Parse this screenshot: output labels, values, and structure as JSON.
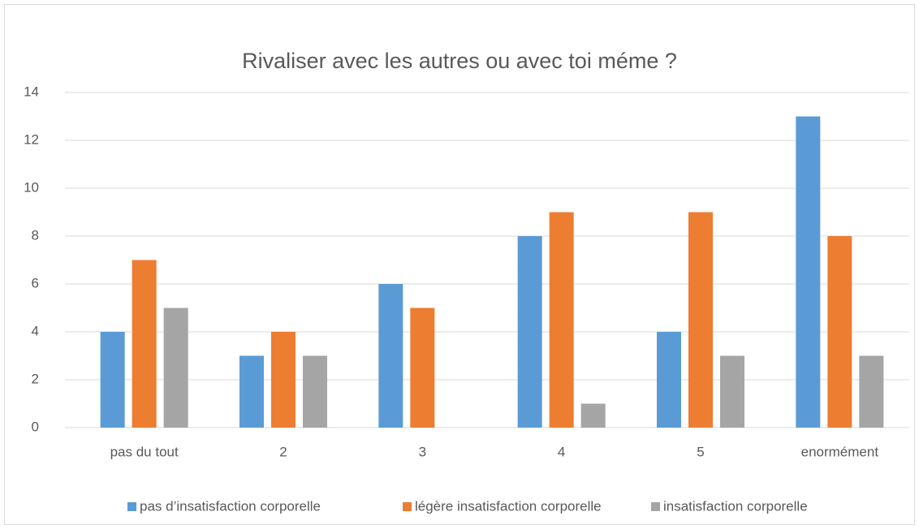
{
  "chart_data": {
    "type": "bar",
    "title": "Rivaliser avec les autres ou avec toi méme ?",
    "categories": [
      "pas du tout",
      "2",
      "3",
      "4",
      "5",
      "enormément"
    ],
    "series": [
      {
        "name": "pas d’insatisfaction corporelle",
        "color": "#5b9bd5",
        "values": [
          4,
          3,
          6,
          8,
          4,
          13
        ]
      },
      {
        "name": "légère insatisfaction corporelle",
        "color": "#ed7d31",
        "values": [
          7,
          4,
          5,
          9,
          9,
          8
        ]
      },
      {
        "name": "insatisfaction corporelle",
        "color": "#a5a5a5",
        "values": [
          5,
          3,
          0,
          1,
          3,
          3
        ]
      }
    ],
    "ylim": [
      0,
      14
    ],
    "yticks": [
      0,
      2,
      4,
      6,
      8,
      10,
      12,
      14
    ],
    "grid": true,
    "legend": "bottom"
  }
}
